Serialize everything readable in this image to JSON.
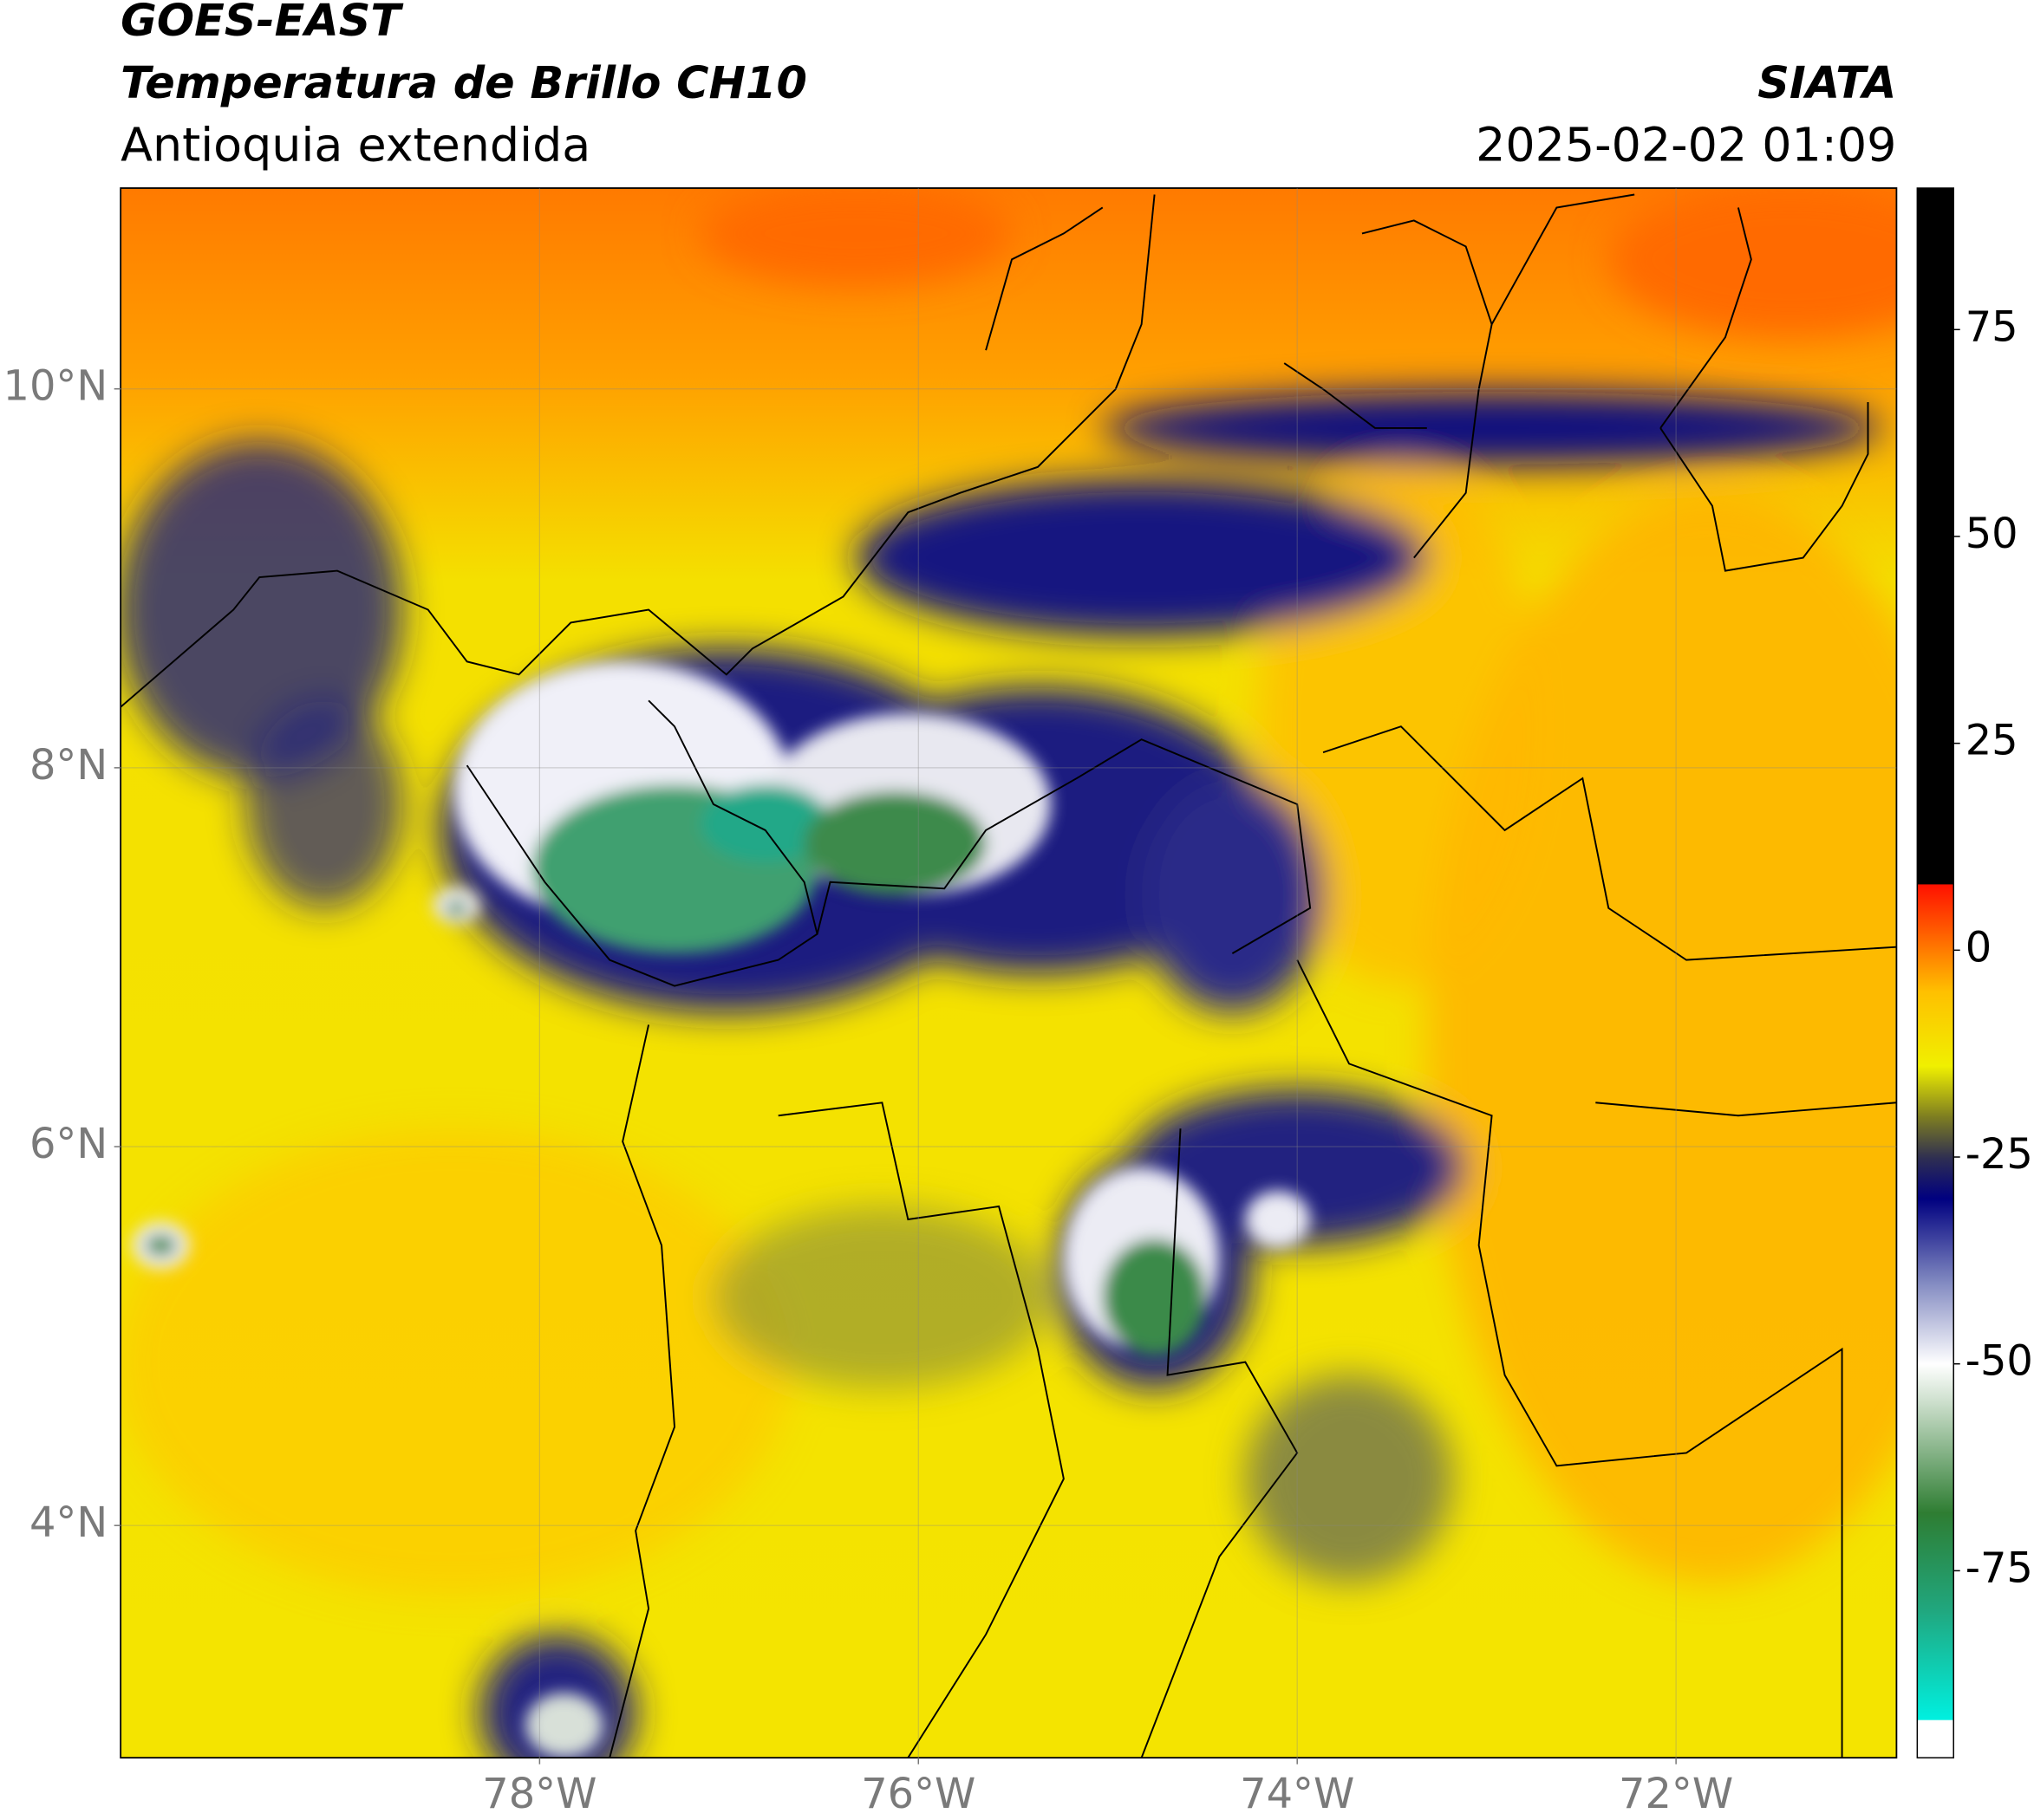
{
  "header": {
    "title": "GOES-EAST",
    "subtitle": "Temperatura de Brillo CH10",
    "region": "Antioquia extendida",
    "source": "SIATA",
    "datetime": "2025-02-02 01:09"
  },
  "map": {
    "xlim": [
      -80.212,
      -70.836
    ],
    "ylim": [
      2.774,
      11.06
    ],
    "xticks": [
      {
        "value": -78,
        "label": "78°W"
      },
      {
        "value": -76,
        "label": "76°W"
      },
      {
        "value": -74,
        "label": "74°W"
      },
      {
        "value": -72,
        "label": "72°W"
      }
    ],
    "yticks": [
      {
        "value": 10,
        "label": "10°N"
      },
      {
        "value": 8,
        "label": "8°N"
      },
      {
        "value": 6,
        "label": "6°N"
      },
      {
        "value": 4,
        "label": "4°N"
      }
    ],
    "grid": true
  },
  "colorbar": {
    "ylim": [
      -97.6,
      92.1
    ],
    "ticks": [
      75,
      50,
      25,
      0,
      -25,
      -50,
      -75
    ],
    "colormap": [
      {
        "value": -97.6,
        "color": "#ffffff"
      },
      {
        "value": -93,
        "color": "#ffffff"
      },
      {
        "value": -93,
        "color": "#00f0e0"
      },
      {
        "value": -80,
        "color": "#20a880"
      },
      {
        "value": -68,
        "color": "#2e7d32"
      },
      {
        "value": -55,
        "color": "#c8dcc8"
      },
      {
        "value": -50,
        "color": "#ffffff"
      },
      {
        "value": -40,
        "color": "#8088c0"
      },
      {
        "value": -30,
        "color": "#000080"
      },
      {
        "value": -25,
        "color": "#303050"
      },
      {
        "value": -20,
        "color": "#808020"
      },
      {
        "value": -14,
        "color": "#f0f000"
      },
      {
        "value": -5,
        "color": "#ffc000"
      },
      {
        "value": 2,
        "color": "#ff6000"
      },
      {
        "value": 8,
        "color": "#ff1000"
      },
      {
        "value": 8,
        "color": "#000000"
      },
      {
        "value": 92.1,
        "color": "#000000"
      }
    ]
  }
}
